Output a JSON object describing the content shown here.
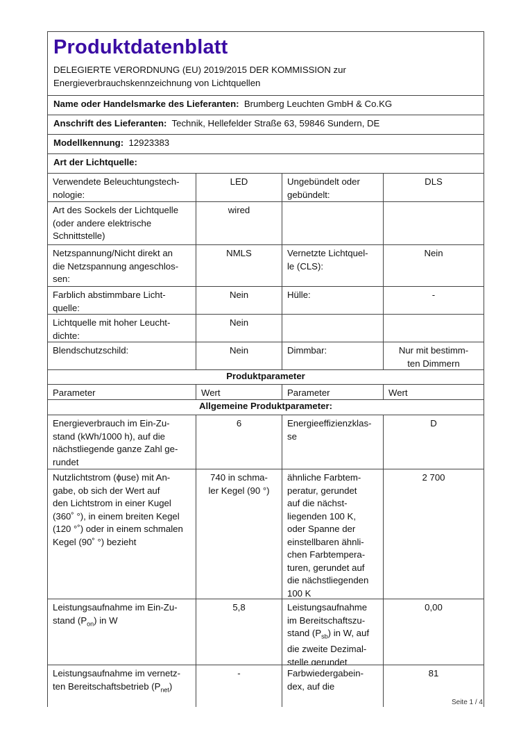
{
  "header": {
    "title": "Produktdatenblatt",
    "regulation_line1": "DELEGIERTE VERORDNUNG (EU) 2019/2015 DER KOMMISSION zur",
    "regulation_line2": "Energieverbrauchskennzeichnung von Lichtquellen"
  },
  "supplier": {
    "name_label": "Name oder Handelsmarke des Lieferanten:",
    "name_value": "Brumberg Leuchten GmbH & Co.KG",
    "address_label": "Anschrift des Lieferanten:",
    "address_value": "Technik, Hellefelder Straße 63, 59846 Sundern, DE",
    "model_label": "Modellkennung:",
    "model_value": "12923383",
    "type_heading": "Art der Lichtquelle:"
  },
  "light_source_rows": [
    [
      "Verwendete Beleuchtungstech-\nnologie:",
      "LED",
      "Ungebündelt     oder\ngebündelt:",
      "DLS"
    ],
    [
      "Art des Sockels der Lichtquelle\n(oder     andere     elektrische\nSchnittstelle)",
      "wired",
      "",
      ""
    ],
    [
      "Netzspannung/Nicht direkt an\ndie Netzspannung angeschlos-\nsen:",
      "NMLS",
      "Vernetzte Lichtquel-\nle (CLS):",
      "Nein"
    ],
    [
      "Farblich   abstimmbare   Licht-\nquelle:",
      "Nein",
      "Hülle:",
      "-"
    ],
    [
      "Lichtquelle mit hoher Leucht-\ndichte:",
      "Nein",
      "",
      ""
    ],
    [
      "Blendschutzschild:",
      "Nein",
      "Dimmbar:",
      "Nur mit bestimm-\nten Dimmern"
    ]
  ],
  "params": {
    "heading": "Produktparameter",
    "columns": [
      "Parameter",
      "Wert",
      "Parameter",
      "Wert"
    ],
    "general_heading": "Allgemeine Produktparameter:",
    "rows": [
      {
        "p1": {
          "pre": "Energieverbrauch   im   Ein-Zu-\nstand  (kWh/1000  h),  auf  die\nnächstliegende ganze Zahl ge-\nrundet",
          "sub": "",
          "post": ""
        },
        "v1": "6",
        "p2": {
          "pre": "Energieeffizienzklas-\nse",
          "sub": "",
          "post": ""
        },
        "v2": "D"
      },
      {
        "p1": {
          "pre": "Nutzlichtstrom (ɸuse) mit An-\ngabe,  ob  sich  der  Wert  auf\nden Lichtstrom in einer Kugel\n(360˚ °), in einem breiten Kegel\n(120 °˚) oder in einem schmalen\nKegel (90˚ °) bezieht",
          "sub": "",
          "post": ""
        },
        "v1": "740 in schma-\nler Kegel (90 °)",
        "p2": {
          "pre": "ähnliche      Farbtem-\nperatur,     gerundet\nauf     die     nächst-\nliegenden    100    K,\noder    Spanne    der\neinstellbaren   ähnli-\nchen   Farbtempera-\nturen, gerundet auf\ndie nächstliegenden\n100 K",
          "sub": "",
          "post": ""
        },
        "v2": "2 700"
      },
      {
        "p1": {
          "pre": "Leistungsaufnahme   im   Ein-Zu-\nstand (P",
          "sub": "on",
          "post": ") in W"
        },
        "v1": "5,8",
        "p2": {
          "pre": "Leistungsaufnahme\nim   Bereitschaftszu-\nstand (P",
          "sub": "sb",
          "post": ") in W, auf\ndie zweite Dezimal-\nstelle gerundet"
        },
        "v2": "0,00"
      },
      {
        "p1": {
          "pre": "Leistungsaufnahme im vernetz-\nten  Bereitschaftsbetrieb  (P",
          "sub": "net",
          "post": ")"
        },
        "v1": "-",
        "p2": {
          "pre": "Farbwiedergabein-\ndex,          auf          die",
          "sub": "",
          "post": ""
        },
        "v2": "81"
      }
    ]
  },
  "footer": {
    "page": "Seite 1 / 4"
  }
}
